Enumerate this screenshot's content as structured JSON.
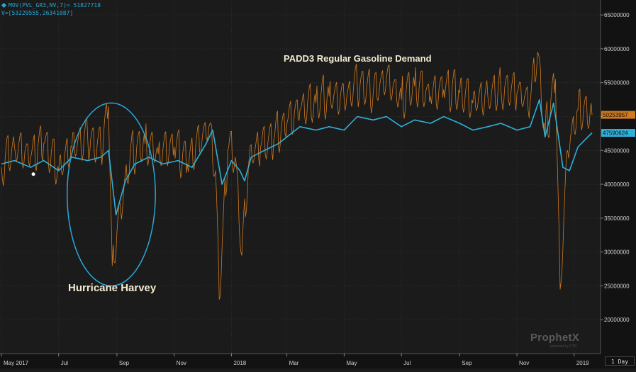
{
  "legend": {
    "series_label": "MOV(PVL_GR3,NV,7)= 51827718",
    "cursor_label": "V=[53229555,26341087]"
  },
  "title": "PADD3 Regular Gasoline Demand",
  "annotation": "Hurricane Harvey",
  "branding": {
    "name": "ProphetX",
    "subtitle": "powered by DTN"
  },
  "period_selector": "1 Day",
  "colors": {
    "background": "#1b1b1b",
    "raw_series": "#d07a1e",
    "moving_average": "#2fb0d8",
    "annotation": "#2aa7d6",
    "grid": "#3a3a3a"
  },
  "chart_data": {
    "type": "line",
    "xlabel": "",
    "ylabel": "",
    "x_range": [
      "2017-05-01",
      "2019-01-20"
    ],
    "x_ticks": [
      {
        "date": "2017-05-01",
        "label": "May 2017"
      },
      {
        "date": "2017-07-01",
        "label": "Jul"
      },
      {
        "date": "2017-09-01",
        "label": "Sep"
      },
      {
        "date": "2017-11-01",
        "label": "Nov"
      },
      {
        "date": "2018-01-01",
        "label": "2018"
      },
      {
        "date": "2018-03-01",
        "label": "Mar"
      },
      {
        "date": "2018-05-01",
        "label": "May"
      },
      {
        "date": "2018-07-01",
        "label": "Jul"
      },
      {
        "date": "2018-09-01",
        "label": "Sep"
      },
      {
        "date": "2018-11-01",
        "label": "Nov"
      },
      {
        "date": "2019-01-01",
        "label": "2019"
      }
    ],
    "ylim": [
      15000000,
      67000000
    ],
    "y_ticks": [
      {
        "value": 20000000,
        "label": "20000000"
      },
      {
        "value": 25000000,
        "label": "25000000"
      },
      {
        "value": 30000000,
        "label": "30000000"
      },
      {
        "value": 35000000,
        "label": "35000000"
      },
      {
        "value": 40000000,
        "label": "40000000"
      },
      {
        "value": 45000000,
        "label": "45000000"
      },
      {
        "value": 50000000,
        "label": "50000000"
      },
      {
        "value": 55000000,
        "label": "55000000"
      },
      {
        "value": 60000000,
        "label": "60000000"
      },
      {
        "value": 65000000,
        "label": "65000000"
      }
    ],
    "grid": true,
    "last_value_tags": [
      {
        "value": 50253957,
        "label": "50253957",
        "color": "#d07a1e"
      },
      {
        "value": 47590624,
        "label": "47590624",
        "color": "#2fb0d8"
      }
    ],
    "series": [
      {
        "role": "raw",
        "color": "#d07a1e",
        "points": [
          [
            "2017-05-01",
            42500000
          ],
          [
            "2017-05-15",
            45500000
          ],
          [
            "2017-06-01",
            44000000
          ],
          [
            "2017-06-15",
            46000000
          ],
          [
            "2017-07-01",
            42000000
          ],
          [
            "2017-07-15",
            45500000
          ],
          [
            "2017-08-01",
            46500000
          ],
          [
            "2017-08-15",
            45000000
          ],
          [
            "2017-08-23",
            51500000
          ],
          [
            "2017-08-27",
            28000000
          ],
          [
            "2017-09-05",
            36000000
          ],
          [
            "2017-09-15",
            44000000
          ],
          [
            "2017-10-01",
            46000000
          ],
          [
            "2017-10-15",
            44500000
          ],
          [
            "2017-11-01",
            45500000
          ],
          [
            "2017-11-15",
            43000000
          ],
          [
            "2017-12-01",
            47000000
          ],
          [
            "2017-12-08",
            48500000
          ],
          [
            "2017-12-15",
            42000000
          ],
          [
            "2017-12-19",
            23000000
          ],
          [
            "2017-12-28",
            45000000
          ],
          [
            "2018-01-05",
            44000000
          ],
          [
            "2018-01-12",
            29500000
          ],
          [
            "2018-01-20",
            44000000
          ],
          [
            "2018-02-01",
            45500000
          ],
          [
            "2018-02-15",
            46500000
          ],
          [
            "2018-03-01",
            49000000
          ],
          [
            "2018-03-15",
            51000000
          ],
          [
            "2018-04-01",
            52000000
          ],
          [
            "2018-04-15",
            53000000
          ],
          [
            "2018-05-01",
            52500000
          ],
          [
            "2018-05-15",
            54500000
          ],
          [
            "2018-06-01",
            53500000
          ],
          [
            "2018-06-15",
            55500000
          ],
          [
            "2018-07-01",
            52500000
          ],
          [
            "2018-07-15",
            54500000
          ],
          [
            "2018-08-01",
            53000000
          ],
          [
            "2018-08-15",
            54000000
          ],
          [
            "2018-09-01",
            53500000
          ],
          [
            "2018-09-15",
            52000000
          ],
          [
            "2018-10-01",
            53000000
          ],
          [
            "2018-10-15",
            54000000
          ],
          [
            "2018-11-01",
            53500000
          ],
          [
            "2018-11-15",
            52000000
          ],
          [
            "2018-11-23",
            59500000
          ],
          [
            "2018-12-01",
            47000000
          ],
          [
            "2018-12-12",
            55500000
          ],
          [
            "2018-12-17",
            24500000
          ],
          [
            "2018-12-25",
            45000000
          ],
          [
            "2019-01-05",
            51000000
          ],
          [
            "2019-01-20",
            50253957
          ]
        ]
      },
      {
        "role": "moving-average",
        "color": "#2fb0d8",
        "points": [
          [
            "2017-05-01",
            43000000
          ],
          [
            "2017-05-15",
            43500000
          ],
          [
            "2017-06-01",
            42500000
          ],
          [
            "2017-06-15",
            43500000
          ],
          [
            "2017-07-01",
            42000000
          ],
          [
            "2017-07-15",
            44000000
          ],
          [
            "2017-08-01",
            43500000
          ],
          [
            "2017-08-15",
            44000000
          ],
          [
            "2017-08-23",
            45000000
          ],
          [
            "2017-08-31",
            35500000
          ],
          [
            "2017-09-10",
            40500000
          ],
          [
            "2017-09-20",
            43000000
          ],
          [
            "2017-10-05",
            44000000
          ],
          [
            "2017-10-20",
            43000000
          ],
          [
            "2017-11-05",
            43500000
          ],
          [
            "2017-11-20",
            42500000
          ],
          [
            "2017-12-05",
            46000000
          ],
          [
            "2017-12-12",
            48000000
          ],
          [
            "2017-12-22",
            40000000
          ],
          [
            "2018-01-01",
            43500000
          ],
          [
            "2018-01-10",
            42000000
          ],
          [
            "2018-01-15",
            40500000
          ],
          [
            "2018-01-22",
            44000000
          ],
          [
            "2018-02-05",
            45000000
          ],
          [
            "2018-02-20",
            46000000
          ],
          [
            "2018-03-01",
            47000000
          ],
          [
            "2018-03-15",
            48500000
          ],
          [
            "2018-04-01",
            48000000
          ],
          [
            "2018-04-15",
            48500000
          ],
          [
            "2018-05-01",
            48000000
          ],
          [
            "2018-05-15",
            50000000
          ],
          [
            "2018-06-01",
            49500000
          ],
          [
            "2018-06-15",
            50000000
          ],
          [
            "2018-07-01",
            48500000
          ],
          [
            "2018-07-15",
            49500000
          ],
          [
            "2018-08-01",
            49000000
          ],
          [
            "2018-08-15",
            50000000
          ],
          [
            "2018-09-01",
            49000000
          ],
          [
            "2018-09-15",
            48000000
          ],
          [
            "2018-10-01",
            48500000
          ],
          [
            "2018-10-15",
            49000000
          ],
          [
            "2018-11-01",
            48000000
          ],
          [
            "2018-11-15",
            48500000
          ],
          [
            "2018-11-25",
            52500000
          ],
          [
            "2018-12-01",
            47000000
          ],
          [
            "2018-12-10",
            52000000
          ],
          [
            "2018-12-20",
            42500000
          ],
          [
            "2018-12-27",
            42000000
          ],
          [
            "2019-01-05",
            45500000
          ],
          [
            "2019-01-12",
            46500000
          ],
          [
            "2019-01-20",
            47590624
          ]
        ]
      }
    ],
    "markers": [
      {
        "date": "2017-06-04",
        "value": 41500000,
        "color": "#ffffff"
      }
    ],
    "annotation_ellipse": {
      "center_date": "2017-08-26",
      "center_value": 38500000,
      "radius_days": 47,
      "radius_value": 13500000,
      "color": "#2aa7d6"
    }
  }
}
